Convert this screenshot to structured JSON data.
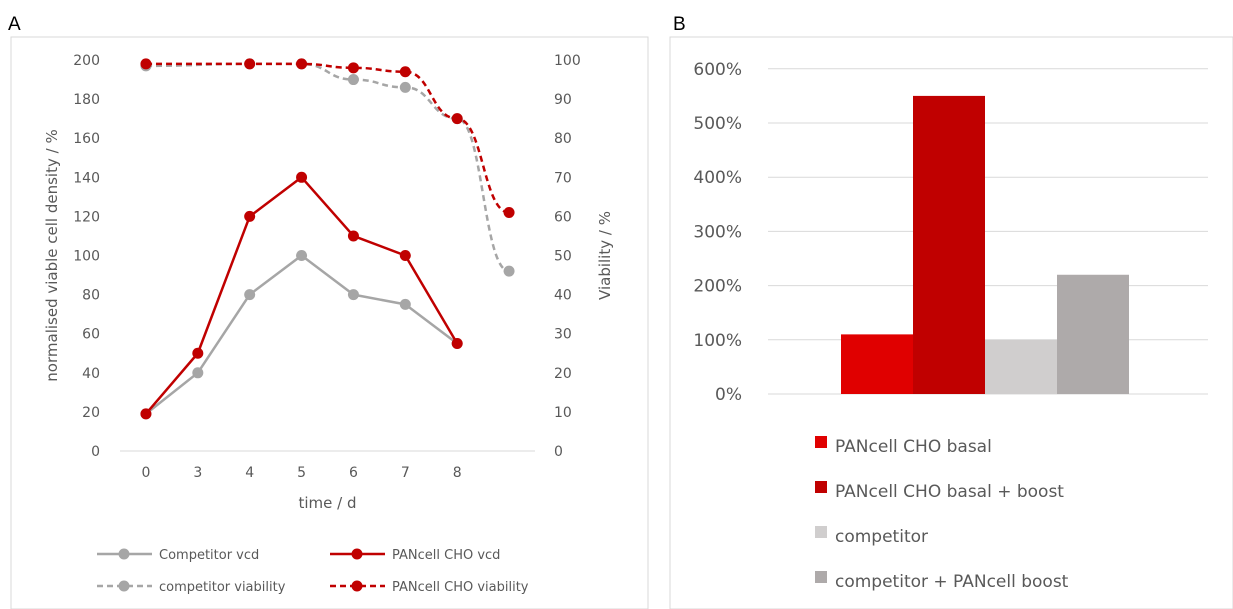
{
  "panels": {
    "a_label": "A",
    "b_label": "B"
  },
  "chart_data": [
    {
      "type": "line",
      "x": [
        "0",
        "3",
        "4",
        "5",
        "6",
        "7",
        "8",
        ""
      ],
      "xlabel": "time / d",
      "ylabel": "normalised viable cell density / %",
      "y2label": "Viability / %",
      "ylim": [
        0,
        200
      ],
      "y2lim": [
        0,
        100
      ],
      "yticks": [
        "0",
        "20",
        "40",
        "60",
        "80",
        "100",
        "120",
        "140",
        "160",
        "180",
        "200"
      ],
      "y2ticks": [
        "0",
        "10",
        "20",
        "30",
        "40",
        "50",
        "60",
        "70",
        "80",
        "90",
        "100"
      ],
      "grid": false,
      "legend_position": "bottom",
      "series": [
        {
          "name": "Competitor vcd",
          "axis": "left",
          "style": "solid",
          "color": "#A6A6A6",
          "values": [
            19,
            40,
            80,
            100,
            80,
            75,
            55,
            null
          ]
        },
        {
          "name": "PANcell CHO vcd",
          "axis": "left",
          "style": "solid",
          "color": "#C00000",
          "values": [
            19,
            50,
            120,
            140,
            110,
            100,
            55,
            null
          ]
        },
        {
          "name": "competitor viability",
          "axis": "right",
          "style": "dashed",
          "color": "#A6A6A6",
          "values": [
            98.5,
            null,
            99,
            99,
            95,
            93,
            85,
            46
          ]
        },
        {
          "name": "PANcell CHO viability",
          "axis": "right",
          "style": "dashed",
          "color": "#C00000",
          "values": [
            99,
            null,
            99,
            99,
            98,
            97,
            85,
            61
          ]
        }
      ]
    },
    {
      "type": "bar",
      "categories": [
        ""
      ],
      "ylim": [
        0,
        6.5
      ],
      "yticks": [
        "0%",
        "100%",
        "200%",
        "300%",
        "400%",
        "500%",
        "600%"
      ],
      "grid": true,
      "legend_position": "bottom",
      "series": [
        {
          "name": "PANcell CHO basal",
          "color": "#E00000",
          "values": [
            1.1
          ]
        },
        {
          "name": "PANcell CHO basal + boost",
          "color": "#C00000",
          "values": [
            5.5
          ]
        },
        {
          "name": "competitor",
          "color": "#D0CECE",
          "values": [
            1.0
          ]
        },
        {
          "name": "competitor + PANcell boost",
          "color": "#AEAAAA",
          "values": [
            2.2
          ]
        }
      ]
    }
  ]
}
